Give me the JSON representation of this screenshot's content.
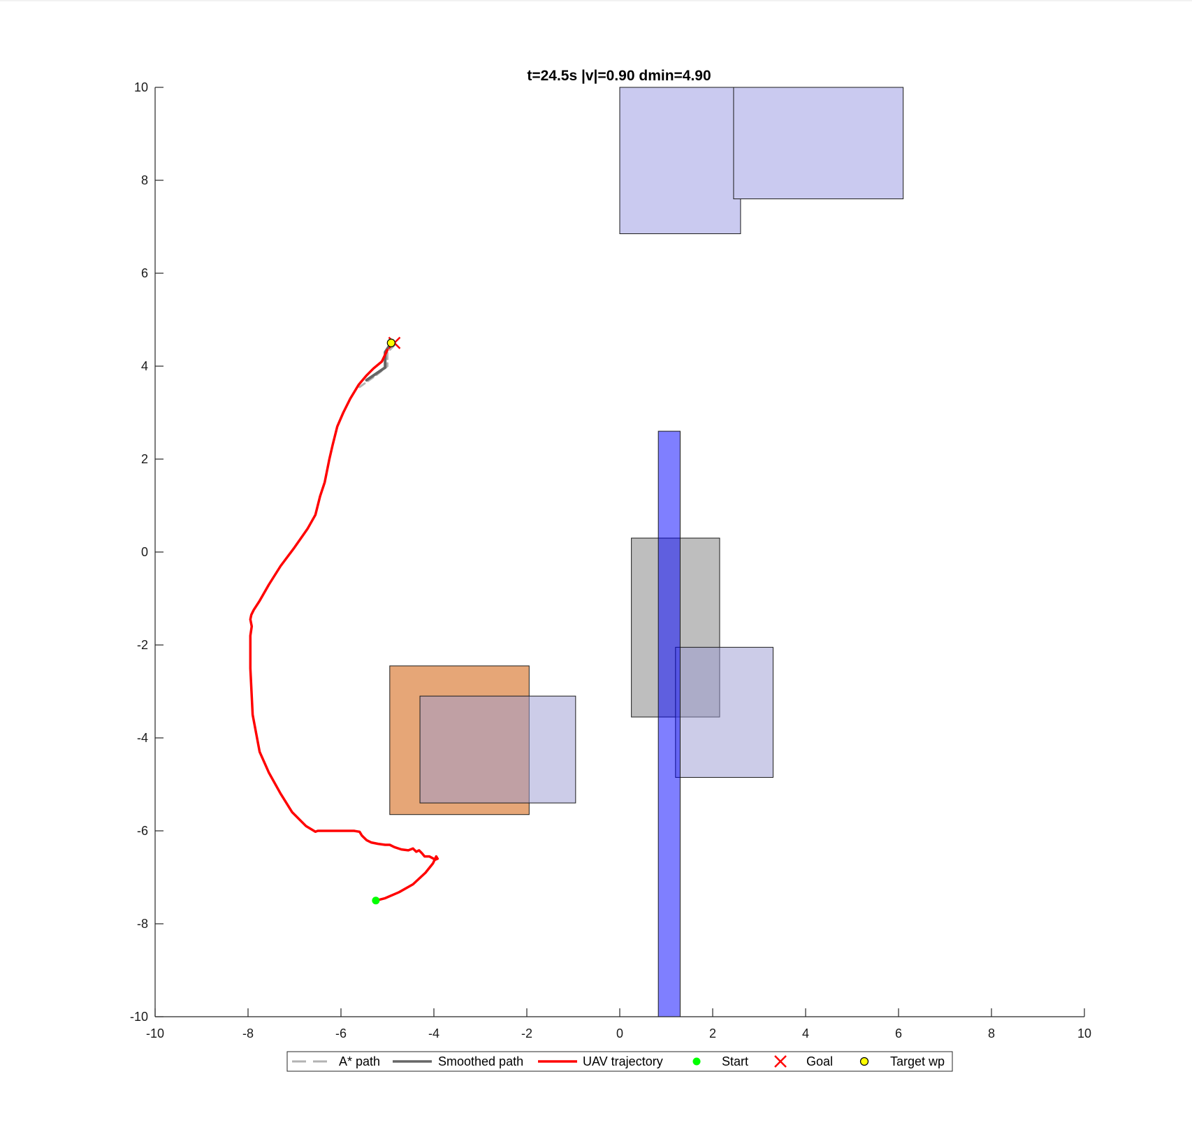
{
  "chart_data": {
    "type": "line",
    "title": "t=24.5s  |v|=0.90  dmin=4.90",
    "xlim": [
      -10,
      10
    ],
    "ylim": [
      -10,
      10
    ],
    "xticks": [
      -10,
      -8,
      -6,
      -4,
      -2,
      0,
      2,
      4,
      6,
      8,
      10
    ],
    "yticks": [
      -10,
      -8,
      -6,
      -4,
      -2,
      0,
      2,
      4,
      6,
      8,
      10
    ],
    "grid": false,
    "legend_placement": "bottom-outside",
    "obstacles": [
      {
        "x": 0.0,
        "y": 6.85,
        "w": 2.6,
        "h": 3.15,
        "fill": "#cacaf0",
        "opacity": 1
      },
      {
        "x": 2.45,
        "y": 7.6,
        "w": 3.65,
        "h": 2.4,
        "fill": "#cacaf0",
        "opacity": 1
      },
      {
        "x": 0.25,
        "y": -3.55,
        "w": 1.9,
        "h": 3.85,
        "fill": "#bebebe",
        "opacity": 1
      },
      {
        "x": 1.2,
        "y": -4.85,
        "w": 2.1,
        "h": 2.8,
        "fill": "#9a9ad2",
        "opacity": 0.5
      },
      {
        "x": -4.95,
        "y": -5.65,
        "w": 3.0,
        "h": 3.2,
        "fill": "#e6a677",
        "opacity": 1
      },
      {
        "x": -4.3,
        "y": -5.4,
        "w": 3.35,
        "h": 2.3,
        "fill": "#9a9ad2",
        "opacity": 0.5
      },
      {
        "x": 0.83,
        "y": -10.0,
        "w": 0.47,
        "h": 12.6,
        "fill": "#0000ff",
        "opacity": 0.5
      }
    ],
    "series": [
      {
        "name": "A* path",
        "style": "dashed",
        "color": "#b3b3b3",
        "x": [
          -5.6,
          -5.25,
          -5.0,
          -5.0,
          -4.8
        ],
        "y": [
          3.55,
          3.8,
          4.0,
          4.3,
          4.5
        ]
      },
      {
        "name": "Smoothed path",
        "style": "solid",
        "color": "#666666",
        "x": [
          -5.45,
          -5.05,
          -5.05,
          -4.92
        ],
        "y": [
          3.7,
          3.97,
          4.3,
          4.5
        ]
      },
      {
        "name": "UAV trajectory",
        "style": "solid",
        "color": "#ff0000",
        "x": [
          -5.25,
          -5.05,
          -4.75,
          -4.45,
          -4.18,
          -4.02,
          -3.95,
          -3.92,
          -3.97,
          -4.1,
          -4.2,
          -4.26,
          -4.32,
          -4.38,
          -4.45,
          -4.55,
          -4.7,
          -4.85,
          -4.95,
          -5.05,
          -5.2,
          -5.35,
          -5.45,
          -5.55,
          -5.6,
          -5.72,
          -5.95,
          -6.25,
          -6.5,
          -6.55,
          -6.75,
          -7.05,
          -7.3,
          -7.55,
          -7.75,
          -7.9,
          -7.95,
          -7.95,
          -7.92,
          -7.95,
          -7.93,
          -7.88,
          -7.75,
          -7.55,
          -7.3,
          -7.0,
          -6.72,
          -6.55,
          -6.45,
          -6.35,
          -6.25,
          -6.18,
          -6.08,
          -5.95,
          -5.8,
          -5.62,
          -5.45,
          -5.3,
          -5.12,
          -5.0
        ],
        "y": [
          -7.5,
          -7.45,
          -7.32,
          -7.15,
          -6.9,
          -6.7,
          -6.55,
          -6.6,
          -6.62,
          -6.55,
          -6.55,
          -6.48,
          -6.42,
          -6.45,
          -6.38,
          -6.42,
          -6.4,
          -6.35,
          -6.3,
          -6.3,
          -6.28,
          -6.25,
          -6.2,
          -6.1,
          -6.02,
          -6.0,
          -6.0,
          -6.0,
          -6.0,
          -6.02,
          -5.9,
          -5.6,
          -5.2,
          -4.75,
          -4.3,
          -3.5,
          -2.5,
          -1.8,
          -1.6,
          -1.45,
          -1.35,
          -1.25,
          -1.05,
          -0.7,
          -0.3,
          0.1,
          0.5,
          0.8,
          1.2,
          1.5,
          2.0,
          2.3,
          2.7,
          3.0,
          3.3,
          3.6,
          3.8,
          3.95,
          4.1,
          4.35
        ]
      },
      {
        "name": "Start",
        "style": "marker",
        "marker": "dot",
        "color": "#00ff00",
        "x": [
          -5.25
        ],
        "y": [
          -7.5
        ]
      },
      {
        "name": "Goal",
        "style": "marker",
        "marker": "x",
        "color": "#ff0000",
        "x": [
          -4.85
        ],
        "y": [
          4.5
        ]
      },
      {
        "name": "Target wp",
        "style": "marker",
        "marker": "circle",
        "color": "#ffff00",
        "x": [
          -4.92
        ],
        "y": [
          4.5
        ]
      }
    ]
  }
}
